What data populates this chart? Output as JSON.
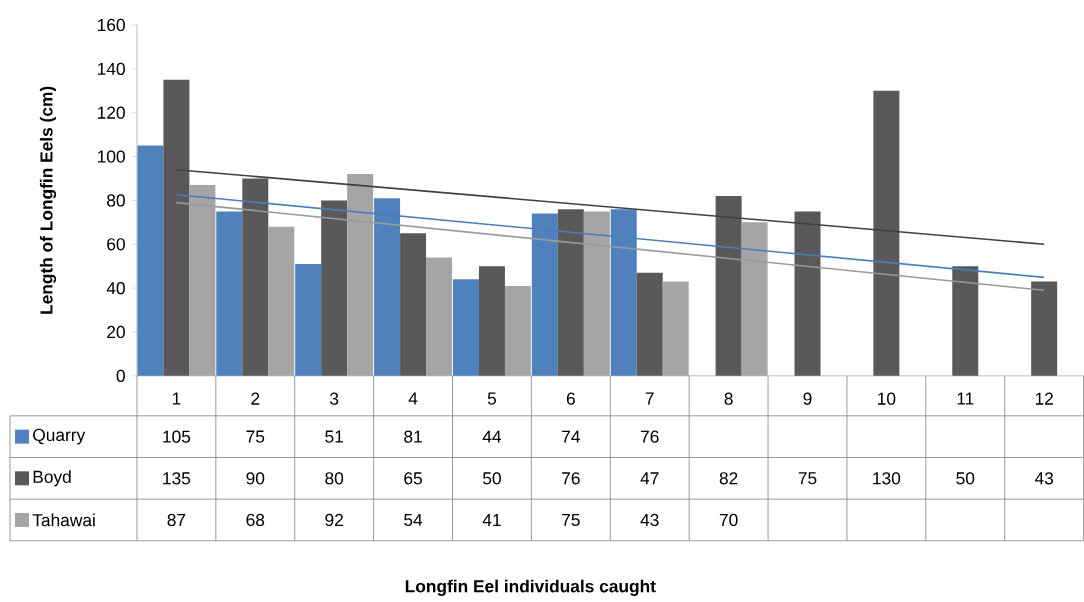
{
  "chart_data": {
    "type": "bar",
    "annotations": [
      "Longfin Eel individuals caught"
    ],
    "ylabel": "Length of Longfin Eels (cm)",
    "categories": [
      "1",
      "2",
      "3",
      "4",
      "5",
      "6",
      "7",
      "8",
      "9",
      "10",
      "11",
      "12"
    ],
    "ylim": [
      0,
      160
    ],
    "yticks": [
      0,
      20,
      40,
      60,
      80,
      100,
      120,
      140,
      160
    ],
    "legend": "bottom",
    "series": [
      {
        "name": "Quarry",
        "color": "#4f81bd",
        "values": [
          105,
          75,
          51,
          81,
          44,
          74,
          76,
          null,
          null,
          null,
          null,
          null
        ],
        "value_labels": [
          "105",
          "75",
          "51",
          "81",
          "44",
          "74",
          "76",
          null,
          null,
          null,
          null,
          null
        ]
      },
      {
        "name": "Boyd",
        "color": "#595959",
        "values": [
          135,
          90,
          80,
          65,
          50,
          76,
          47,
          82,
          75,
          130,
          50,
          43
        ],
        "value_labels": [
          "135",
          "90",
          "80",
          "65",
          "50",
          "76",
          "47",
          "82",
          "75",
          "130",
          "50",
          "43"
        ]
      },
      {
        "name": "Tahawai",
        "color": "#a5a5a5",
        "values": [
          87,
          68,
          92,
          54,
          41,
          75,
          43,
          70,
          null,
          null,
          null,
          null
        ],
        "value_labels": [
          "87",
          "68",
          "92",
          "54",
          "41",
          "75",
          "43",
          "70",
          null,
          null,
          null,
          null
        ]
      },
      {
        "type": "line",
        "color": "#4a7ebb",
        "values": [
          82.6,
          null,
          null,
          null,
          null,
          null,
          null,
          null,
          null,
          null,
          null,
          44.9
        ]
      },
      {
        "type": "line",
        "color": "#404040",
        "values": [
          94,
          null,
          null,
          null,
          null,
          null,
          null,
          null,
          null,
          null,
          null,
          60
        ]
      },
      {
        "type": "line",
        "color": "#9a9a9a",
        "values": [
          79,
          null,
          null,
          null,
          null,
          null,
          null,
          null,
          null,
          null,
          null,
          39
        ]
      }
    ]
  }
}
